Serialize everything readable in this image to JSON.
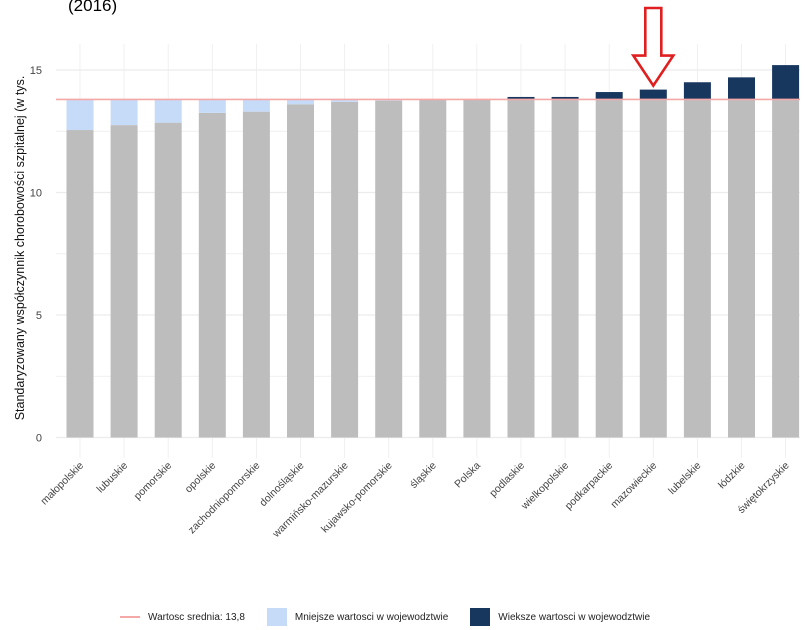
{
  "chart_data": {
    "type": "bar",
    "title_fragment": "(2016)",
    "ylabel": "Standaryzowany współczynnik chorobowości szpitalnej (w tys.",
    "ylim": [
      0,
      16
    ],
    "yticks": [
      0,
      5,
      10,
      15
    ],
    "mean_value": 13.8,
    "categories": [
      "małopolskie",
      "lubuskie",
      "pomorskie",
      "opolskie",
      "zachodniopomorskie",
      "dolnośląskie",
      "warmińsko-mazurskie",
      "kujawsko-pomorskie",
      "śląskie",
      "Polska",
      "podlaskie",
      "wielkopolskie",
      "podkarpackie",
      "mazowieckie",
      "lubelskie",
      "łódzkie",
      "świętokrzyskie"
    ],
    "values": [
      12.55,
      12.75,
      12.85,
      13.25,
      13.3,
      13.6,
      13.7,
      13.75,
      13.78,
      13.8,
      13.9,
      13.9,
      14.1,
      14.2,
      14.5,
      14.7,
      15.2
    ],
    "highlighted": "mazowieckie",
    "legend": [
      {
        "label": "Wartosc srednia: 13,8",
        "color": "#f4a9a8",
        "kind": "line"
      },
      {
        "label": "Mniejsze wartosci w wojewodztwie",
        "color": "#c6dbf7",
        "kind": "box"
      },
      {
        "label": "Wieksze wartosci w wojewodztwie",
        "color": "#17375e",
        "kind": "box"
      }
    ],
    "colors": {
      "base": "#bdbdbd",
      "below": "#c6dbf7",
      "above": "#17375e",
      "mean": "#f4a9a8",
      "arrow": "#e02020",
      "grid": "#ececec"
    },
    "grid": true,
    "legend_position": "bottom"
  }
}
